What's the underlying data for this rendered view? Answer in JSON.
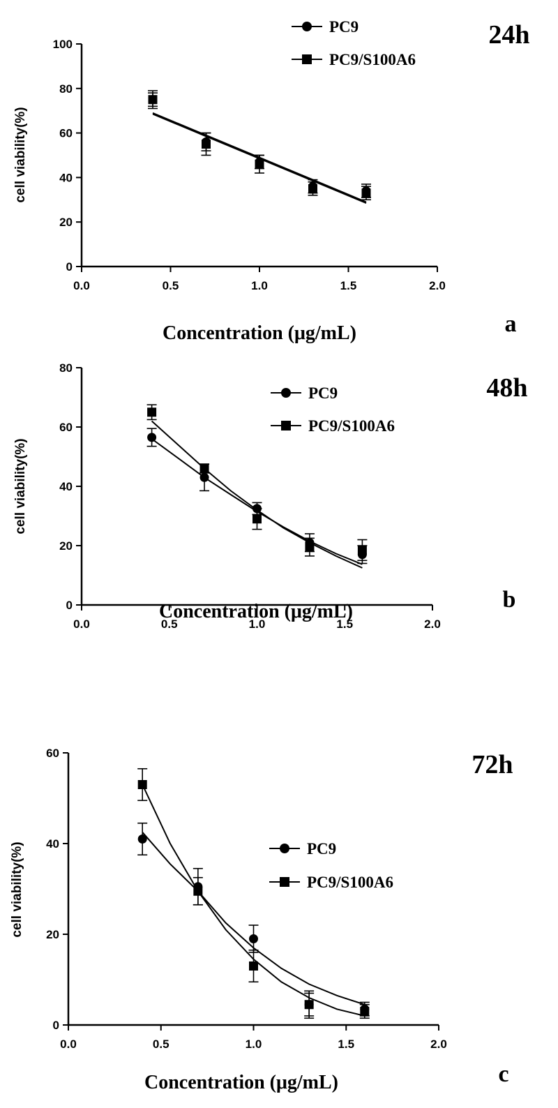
{
  "chart_data": [
    {
      "type": "scatter",
      "panel_label": "a",
      "time_label": "24h",
      "xlabel": "Concentration (μg/mL)",
      "ylabel": "cell viability(%)",
      "xlim": [
        0,
        2
      ],
      "ylim": [
        0,
        100
      ],
      "xticks": [
        "0.0",
        "0.5",
        "1.0",
        "1.5",
        "2.0"
      ],
      "yticks": [
        "0",
        "20",
        "40",
        "60",
        "80",
        "100"
      ],
      "legend_position": "top-center",
      "series": [
        {
          "name": "PC9",
          "marker": "circle",
          "x": [
            0.4,
            0.7,
            1.0,
            1.3,
            1.6
          ],
          "y": [
            75,
            56,
            47,
            36,
            34
          ],
          "err": [
            3,
            4,
            3,
            3,
            3
          ]
        },
        {
          "name": "PC9/S100A6",
          "marker": "square",
          "x": [
            0.4,
            0.7,
            1.0,
            1.3,
            1.6
          ],
          "y": [
            75,
            55,
            46,
            35,
            33
          ],
          "err": [
            4,
            5,
            4,
            3,
            3
          ]
        }
      ],
      "fits": [
        {
          "series": "PC9",
          "x": [
            0.4,
            0.7,
            1.0,
            1.3,
            1.6
          ],
          "y": [
            69,
            59,
            49,
            39,
            29
          ]
        },
        {
          "series": "PC9/S100A6",
          "x": [
            0.4,
            0.7,
            1.0,
            1.3,
            1.6
          ],
          "y": [
            68.5,
            58.5,
            48.5,
            38.5,
            28.5
          ]
        }
      ]
    },
    {
      "type": "scatter",
      "panel_label": "b",
      "time_label": "48h",
      "xlabel": "Concentration (μg/mL)",
      "ylabel": "cell viability(%)",
      "xlim": [
        0,
        2
      ],
      "ylim": [
        0,
        80
      ],
      "xticks": [
        "0.0",
        "0.5",
        "1.0",
        "1.5",
        "2.0"
      ],
      "yticks": [
        "0",
        "20",
        "40",
        "60",
        "80"
      ],
      "legend_position": "top-right",
      "series": [
        {
          "name": "PC9",
          "marker": "circle",
          "x": [
            0.4,
            0.7,
            1.0,
            1.3,
            1.6
          ],
          "y": [
            56.5,
            43,
            32.5,
            21,
            17
          ],
          "err": [
            3,
            4.5,
            2,
            3,
            3
          ]
        },
        {
          "name": "PC9/S100A6",
          "marker": "square",
          "x": [
            0.4,
            0.7,
            1.0,
            1.3,
            1.6
          ],
          "y": [
            65,
            46,
            29,
            19.5,
            18.5
          ],
          "err": [
            2.5,
            1.5,
            3.5,
            3,
            3.5
          ]
        }
      ],
      "fits": [
        {
          "series": "PC9",
          "x": [
            0.4,
            0.55,
            0.7,
            0.85,
            1.0,
            1.15,
            1.3,
            1.45,
            1.6
          ],
          "y": [
            56,
            49.5,
            43,
            37.2,
            31.5,
            26.3,
            21.5,
            17.3,
            13.7
          ]
        },
        {
          "series": "PC9/S100A6",
          "x": [
            0.4,
            0.55,
            0.7,
            0.85,
            1.0,
            1.15,
            1.3,
            1.45,
            1.6
          ],
          "y": [
            62,
            54,
            46,
            38.5,
            32,
            26,
            21,
            16.5,
            12.5
          ]
        }
      ]
    },
    {
      "type": "scatter",
      "panel_label": "c",
      "time_label": "72h",
      "xlabel": "Concentration (μg/mL)",
      "ylabel": "cell viability(%)",
      "xlim": [
        0,
        2
      ],
      "ylim": [
        0,
        60
      ],
      "xticks": [
        "0.0",
        "0.5",
        "1.0",
        "1.5",
        "2.0"
      ],
      "yticks": [
        "0",
        "20",
        "40",
        "60"
      ],
      "legend_position": "center-right",
      "series": [
        {
          "name": "PC9",
          "marker": "circle",
          "x": [
            0.4,
            0.7,
            1.0,
            1.3,
            1.6
          ],
          "y": [
            41,
            30.5,
            19,
            4.5,
            3.5
          ],
          "err": [
            3.5,
            4,
            3,
            3,
            1.5
          ]
        },
        {
          "name": "PC9/S100A6",
          "marker": "square",
          "x": [
            0.4,
            0.7,
            1.0,
            1.3,
            1.6
          ],
          "y": [
            53,
            29.5,
            13,
            4.5,
            3
          ],
          "err": [
            3.5,
            3,
            3.5,
            2.5,
            1.5
          ]
        }
      ],
      "fits": [
        {
          "series": "PC9",
          "x": [
            0.4,
            0.55,
            0.7,
            0.85,
            1.0,
            1.15,
            1.3,
            1.45,
            1.6
          ],
          "y": [
            42.5,
            35.5,
            29.5,
            22.5,
            17,
            12.5,
            9,
            6.5,
            4.5
          ]
        },
        {
          "series": "PC9/S100A6",
          "x": [
            0.4,
            0.55,
            0.7,
            0.85,
            1.0,
            1.15,
            1.3,
            1.45,
            1.6
          ],
          "y": [
            53,
            40,
            29.5,
            21,
            14.5,
            9.5,
            6,
            3.5,
            2
          ]
        }
      ]
    }
  ]
}
